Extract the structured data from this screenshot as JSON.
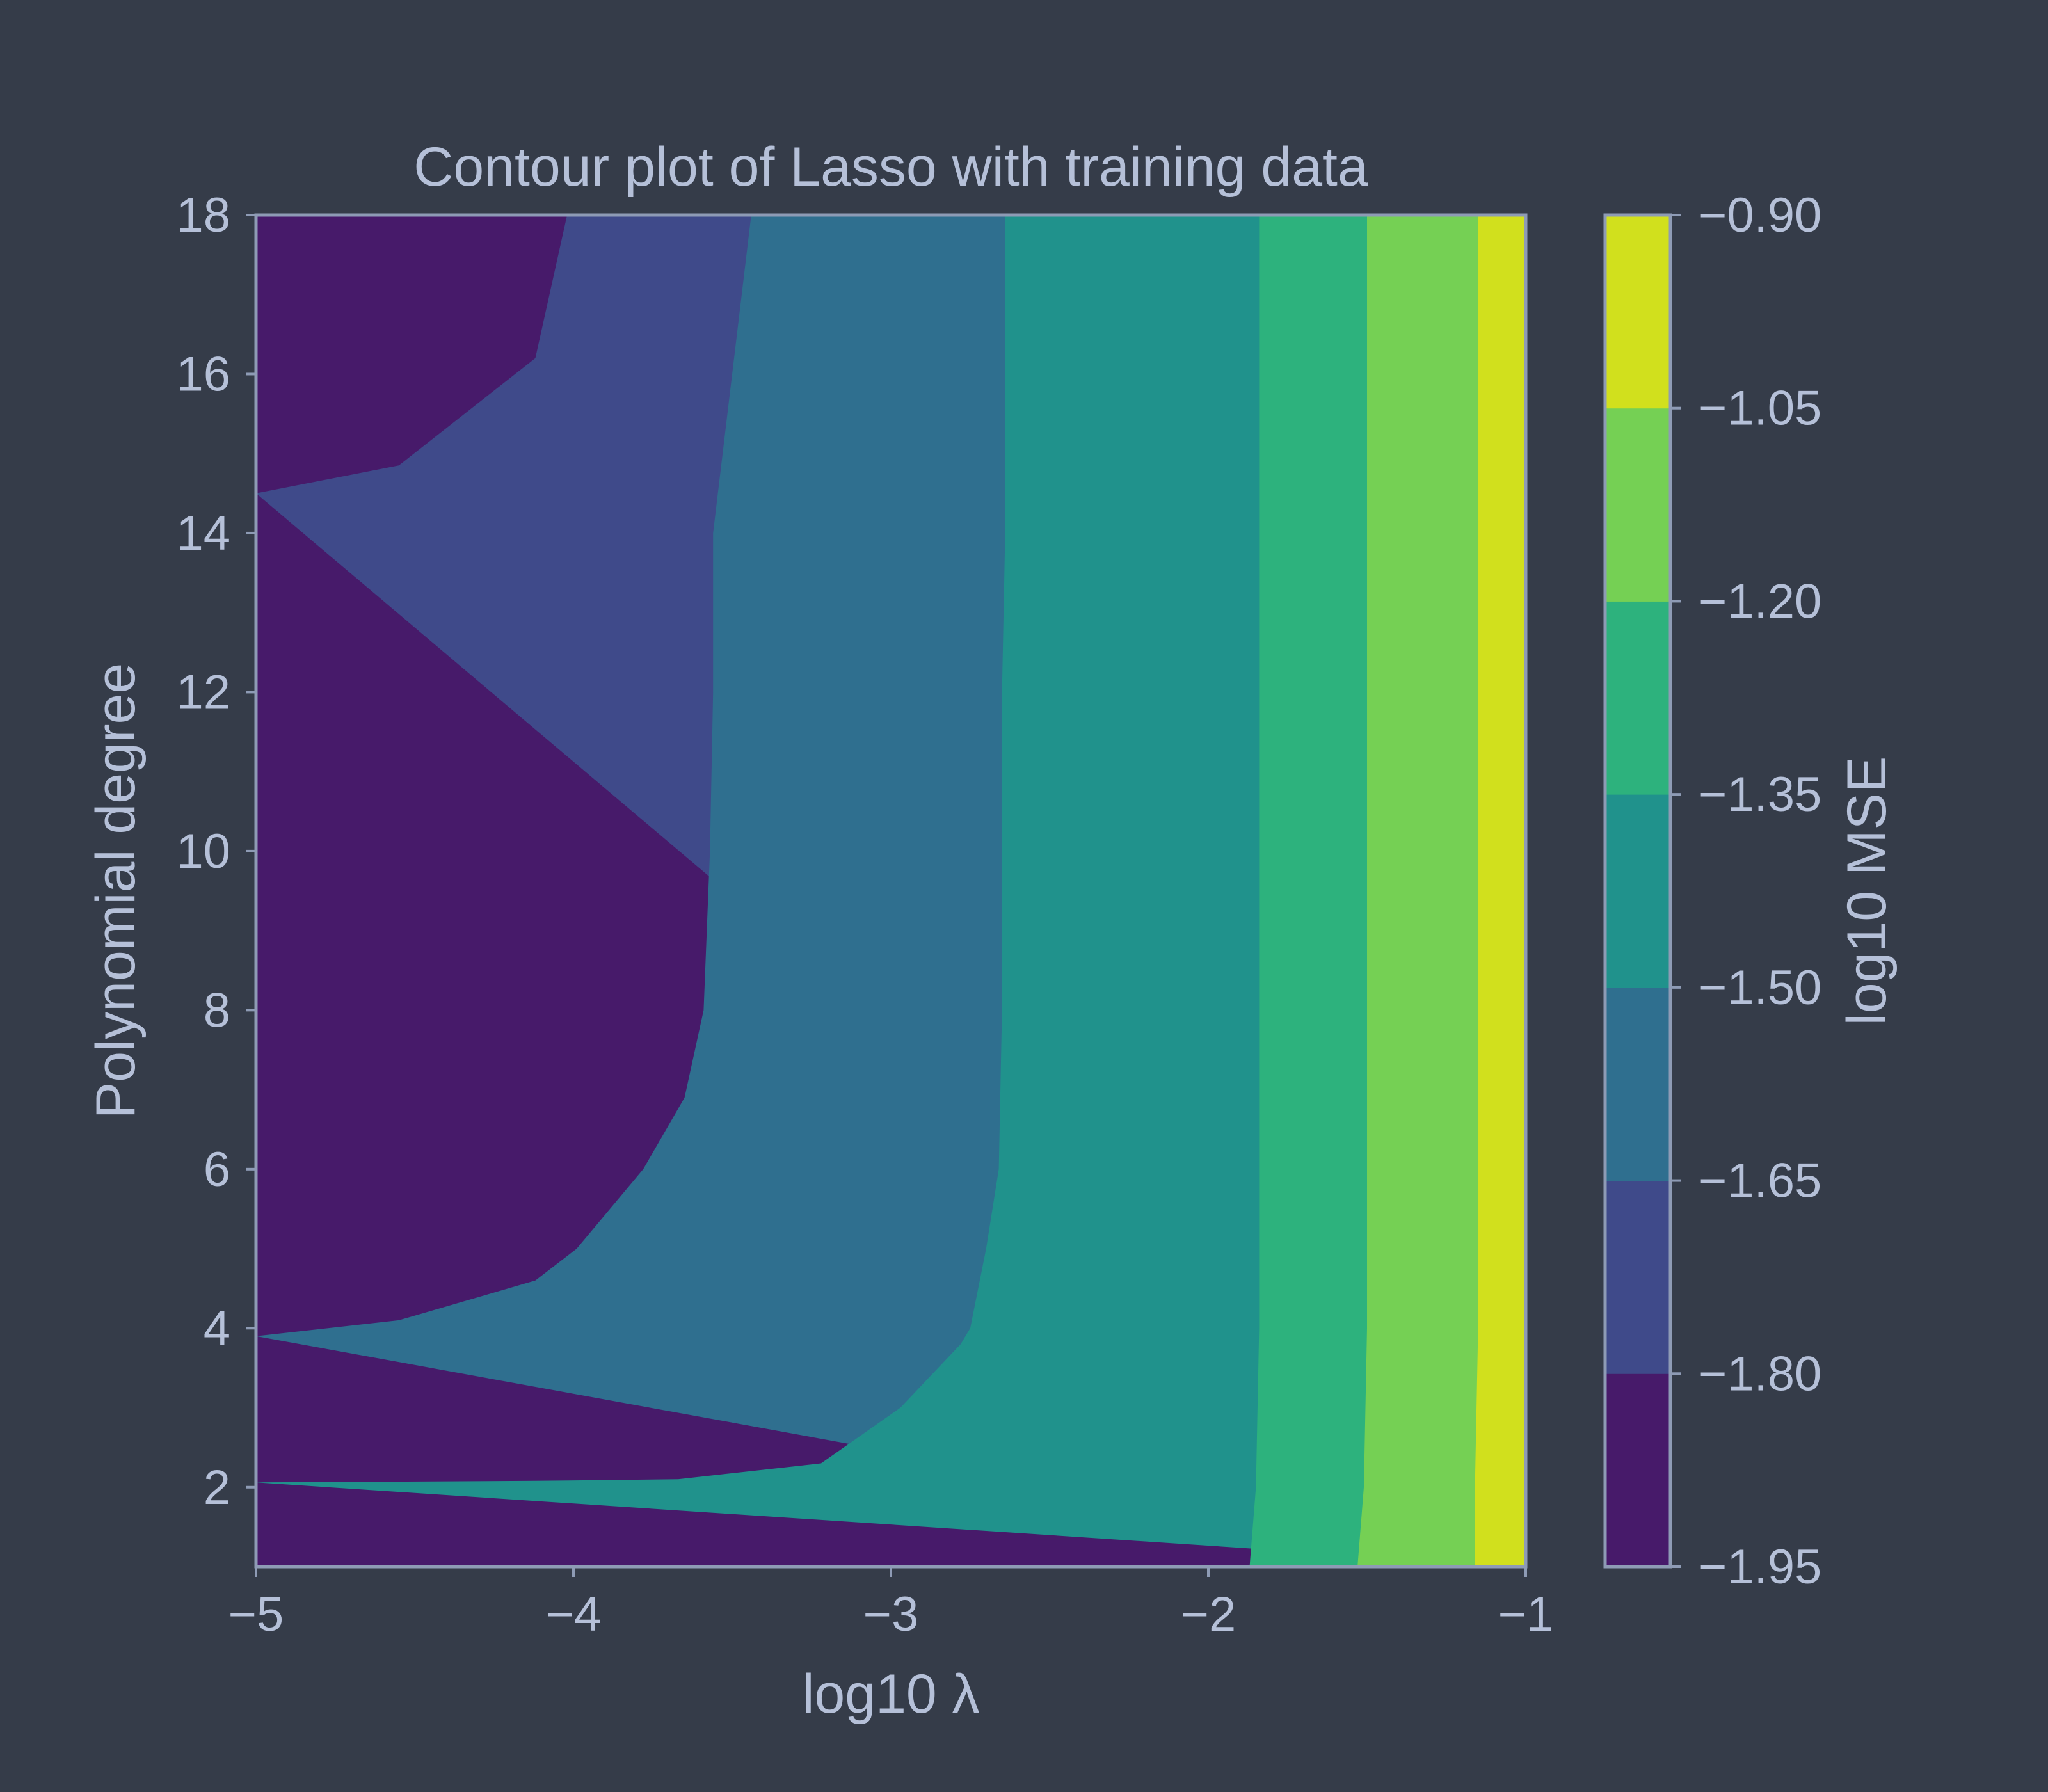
{
  "chart_data": {
    "type": "contour",
    "title": "Contour plot of Lasso with training data",
    "xlabel": "log10 λ",
    "ylabel": "Polynomial degree",
    "colorbar_label": "log10 MSE",
    "xlim": [
      -5,
      -1
    ],
    "ylim": [
      1,
      18
    ],
    "xticks": [
      -5,
      -4,
      -3,
      -2,
      -1
    ],
    "xtick_labels": [
      "−5",
      "−4",
      "−3",
      "−2",
      "−1"
    ],
    "yticks": [
      2,
      4,
      6,
      8,
      10,
      12,
      14,
      16,
      18
    ],
    "ytick_labels": [
      "2",
      "4",
      "6",
      "8",
      "10",
      "12",
      "14",
      "16",
      "18"
    ],
    "levels": [
      -1.95,
      -1.8,
      -1.65,
      -1.5,
      -1.35,
      -1.2,
      -1.05,
      -0.9
    ],
    "level_labels": [
      "−1.95",
      "−1.80",
      "−1.65",
      "−1.50",
      "−1.35",
      "−1.20",
      "−1.05",
      "−0.90"
    ],
    "level_colors": [
      "#471a6a",
      "#3f4a8a",
      "#2f6f8f",
      "#20928c",
      "#2db27d",
      "#75d054",
      "#d1e01d"
    ],
    "grid": false,
    "contours": [
      {
        "level": -1.8,
        "points": [
          [
            -4.02,
            18
          ],
          [
            -4.12,
            16.2
          ],
          [
            -4.55,
            14.85
          ],
          [
            -5.0,
            14.5
          ]
        ]
      },
      {
        "level": -1.65,
        "points": [
          [
            -3.44,
            18
          ],
          [
            -3.5,
            16.0
          ],
          [
            -3.56,
            14.0
          ],
          [
            -3.56,
            12.0
          ],
          [
            -3.57,
            10.0
          ],
          [
            -3.59,
            8.0
          ],
          [
            -3.65,
            6.9
          ],
          [
            -3.78,
            6.0
          ],
          [
            -3.99,
            5.0
          ],
          [
            -4.12,
            4.6
          ],
          [
            -4.55,
            4.1
          ],
          [
            -5.0,
            3.9
          ]
        ]
      },
      {
        "level": -1.5,
        "points": [
          [
            -2.64,
            18
          ],
          [
            -2.64,
            16.0
          ],
          [
            -2.64,
            14.0
          ],
          [
            -2.65,
            12.0
          ],
          [
            -2.65,
            10.0
          ],
          [
            -2.65,
            8.0
          ],
          [
            -2.66,
            6.0
          ],
          [
            -2.7,
            5.0
          ],
          [
            -2.75,
            4.0
          ],
          [
            -2.78,
            3.8
          ],
          [
            -2.97,
            3.0
          ],
          [
            -3.22,
            2.3
          ],
          [
            -3.67,
            2.1
          ],
          [
            -4.12,
            2.08
          ],
          [
            -5.0,
            2.06
          ]
        ]
      },
      {
        "level": -1.35,
        "points": [
          [
            -1.84,
            18
          ],
          [
            -1.84,
            10.0
          ],
          [
            -1.84,
            4.0
          ],
          [
            -1.85,
            2.0
          ],
          [
            -1.87,
            1.0
          ]
        ]
      },
      {
        "level": -1.2,
        "points": [
          [
            -1.5,
            18
          ],
          [
            -1.5,
            10.0
          ],
          [
            -1.5,
            4.0
          ],
          [
            -1.51,
            2.0
          ],
          [
            -1.53,
            1.0
          ]
        ]
      },
      {
        "level": -1.05,
        "points": [
          [
            -1.15,
            18
          ],
          [
            -1.15,
            10.0
          ],
          [
            -1.15,
            4.0
          ],
          [
            -1.16,
            2.0
          ],
          [
            -1.16,
            1.0
          ]
        ]
      }
    ]
  }
}
